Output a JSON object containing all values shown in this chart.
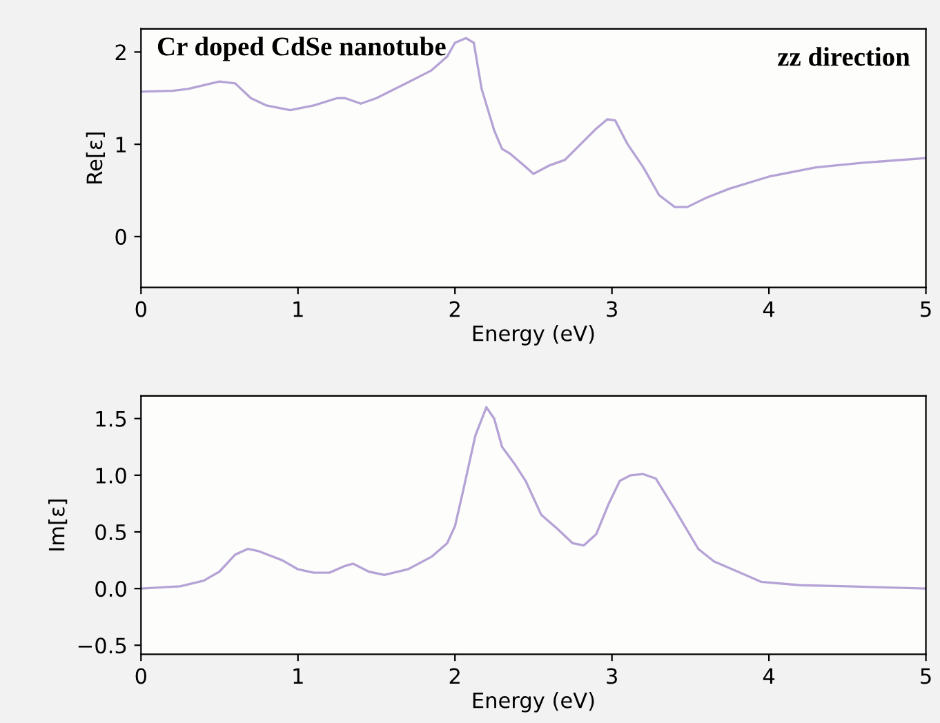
{
  "chart_data": [
    {
      "type": "line",
      "xlabel": "Energy (eV)",
      "ylabel": "Re[ε]",
      "annotations": [
        "Cr doped CdSe nanotube",
        "zz direction"
      ],
      "xlim": [
        0,
        5
      ],
      "xticks": [
        0,
        1,
        2,
        3,
        4,
        5
      ],
      "ylim": [
        -0.55,
        2.25
      ],
      "yticks": [
        0,
        1,
        2
      ],
      "grid": false,
      "legend": false,
      "series": [
        {
          "color": "#b5a3d6",
          "x": [
            0,
            0.2,
            0.3,
            0.5,
            0.6,
            0.7,
            0.8,
            0.95,
            1.1,
            1.25,
            1.3,
            1.4,
            1.5,
            1.7,
            1.85,
            1.95,
            2.0,
            2.07,
            2.12,
            2.17,
            2.25,
            2.3,
            2.35,
            2.42,
            2.5,
            2.6,
            2.7,
            2.8,
            2.9,
            2.97,
            3.02,
            3.1,
            3.2,
            3.3,
            3.4,
            3.48,
            3.6,
            3.75,
            4.0,
            4.3,
            4.6,
            5.0
          ],
          "values": [
            1.57,
            1.58,
            1.6,
            1.68,
            1.66,
            1.5,
            1.42,
            1.37,
            1.42,
            1.5,
            1.5,
            1.44,
            1.5,
            1.67,
            1.8,
            1.95,
            2.1,
            2.15,
            2.1,
            1.6,
            1.15,
            0.95,
            0.9,
            0.8,
            0.68,
            0.77,
            0.83,
            1.0,
            1.17,
            1.27,
            1.26,
            1.0,
            0.75,
            0.45,
            0.32,
            0.32,
            0.42,
            0.52,
            0.65,
            0.75,
            0.8,
            0.85
          ]
        }
      ]
    },
    {
      "type": "line",
      "xlabel": "Energy (eV)",
      "ylabel": "Im[ε]",
      "xlim": [
        0,
        5
      ],
      "xticks": [
        0,
        1,
        2,
        3,
        4,
        5
      ],
      "ylim": [
        -0.58,
        1.7
      ],
      "yticks": [
        {
          "value": -0.5,
          "label": "−0.5"
        },
        {
          "value": 0,
          "label": "0.0"
        },
        {
          "value": 0.5,
          "label": "0.5"
        },
        {
          "value": 1,
          "label": "1.0"
        },
        {
          "value": 1.5,
          "label": "1.5"
        }
      ],
      "grid": false,
      "legend": false,
      "series": [
        {
          "color": "#b5a3d6",
          "x": [
            0,
            0.25,
            0.4,
            0.5,
            0.6,
            0.68,
            0.75,
            0.9,
            1.0,
            1.1,
            1.2,
            1.3,
            1.35,
            1.45,
            1.55,
            1.7,
            1.85,
            1.95,
            2.0,
            2.05,
            2.13,
            2.2,
            2.25,
            2.3,
            2.38,
            2.45,
            2.55,
            2.65,
            2.75,
            2.82,
            2.9,
            2.98,
            3.05,
            3.12,
            3.2,
            3.28,
            3.4,
            3.55,
            3.65,
            3.8,
            3.95,
            4.2,
            4.5,
            5.0
          ],
          "values": [
            0,
            0.02,
            0.07,
            0.15,
            0.3,
            0.35,
            0.33,
            0.25,
            0.17,
            0.14,
            0.14,
            0.2,
            0.22,
            0.15,
            0.12,
            0.17,
            0.28,
            0.4,
            0.55,
            0.85,
            1.35,
            1.6,
            1.5,
            1.25,
            1.1,
            0.95,
            0.65,
            0.53,
            0.4,
            0.38,
            0.48,
            0.75,
            0.95,
            1.0,
            1.01,
            0.97,
            0.7,
            0.35,
            0.24,
            0.15,
            0.06,
            0.03,
            0.02,
            0.0
          ]
        }
      ]
    }
  ]
}
